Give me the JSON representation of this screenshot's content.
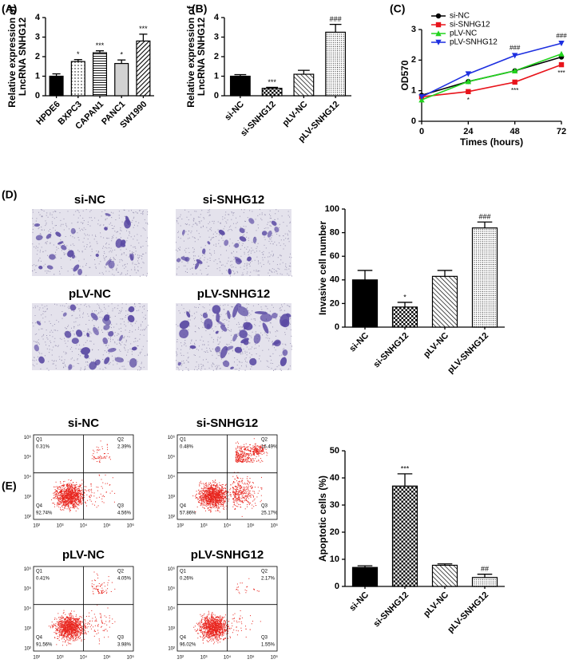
{
  "panel_labels": [
    "(A)",
    "(B)",
    "(C)",
    "(D)",
    "(E)"
  ],
  "chart_data": [
    {
      "type": "bar",
      "ylabel": [
        "Relative expression of",
        "LncRNA SNHG12"
      ],
      "categories": [
        "HPDE6",
        "BXPC3",
        "CAPAN1",
        "PANC1",
        "SW1990"
      ],
      "values": [
        1.0,
        1.75,
        2.2,
        1.65,
        2.8
      ],
      "errors": [
        0.12,
        0.1,
        0.1,
        0.18,
        0.35
      ],
      "annotations": [
        null,
        "*",
        "***",
        "*",
        "***"
      ],
      "patterns": [
        "solid",
        "dots",
        "hlines",
        "gray",
        "diag"
      ],
      "ylim": [
        0,
        4
      ],
      "yticks": [
        0,
        1,
        2,
        3,
        4
      ]
    },
    {
      "type": "bar",
      "ylabel": [
        "Relative expression of",
        "LncRNA SNHG12"
      ],
      "categories": [
        "si-NC",
        "si-SNHG12",
        "pLV-NC",
        "pLV-SNHG12"
      ],
      "values": [
        1.0,
        0.38,
        1.1,
        3.25
      ],
      "errors": [
        0.08,
        0.05,
        0.2,
        0.4
      ],
      "annotations": [
        null,
        "***",
        null,
        "###"
      ],
      "patterns": [
        "solid",
        "checker",
        "back",
        "dense"
      ],
      "ylim": [
        0,
        4
      ],
      "yticks": [
        0,
        1,
        2,
        3,
        4
      ]
    },
    {
      "type": "line",
      "ylabel": [
        "OD570"
      ],
      "xlabel": "Times (hours)",
      "x": [
        0,
        24,
        48,
        72
      ],
      "xlim": [
        0,
        72
      ],
      "xticks": [
        0,
        24,
        48,
        72
      ],
      "ylim": [
        0,
        3
      ],
      "yticks": [
        0,
        1,
        2,
        3
      ],
      "legend": "top-left",
      "series": [
        {
          "name": "si-NC",
          "color": "#000000",
          "marker": "circle",
          "values": [
            0.85,
            1.3,
            1.65,
            2.1
          ]
        },
        {
          "name": "si-SNHG12",
          "color": "#e8141b",
          "marker": "square",
          "values": [
            0.8,
            0.97,
            1.28,
            1.85
          ]
        },
        {
          "name": "pLV-NC",
          "color": "#22d31e",
          "marker": "triangle",
          "values": [
            0.7,
            1.3,
            1.65,
            2.2
          ]
        },
        {
          "name": "pLV-SNHG12",
          "color": "#1d2fe0",
          "marker": "down-triangle",
          "values": [
            0.8,
            1.55,
            2.15,
            2.55
          ]
        }
      ],
      "annotations": [
        {
          "text": "*",
          "series": 1,
          "index": 1
        },
        {
          "text": "###",
          "series": 3,
          "index": 2
        },
        {
          "text": "***",
          "series": 1,
          "index": 2
        },
        {
          "text": "###",
          "series": 3,
          "index": 3
        },
        {
          "text": "***",
          "series": 1,
          "index": 3
        }
      ]
    },
    {
      "type": "bar",
      "ylabel": [
        "Invasive cell number"
      ],
      "categories": [
        "si-NC",
        "si-SNHG12",
        "pLV-NC",
        "pLV-SNHG12"
      ],
      "values": [
        40,
        17,
        43,
        84
      ],
      "errors": [
        8,
        4,
        5,
        5
      ],
      "annotations": [
        null,
        "*",
        null,
        "###"
      ],
      "patterns": [
        "solid",
        "checker",
        "back",
        "dense"
      ],
      "ylim": [
        0,
        100
      ],
      "yticks": [
        0,
        20,
        40,
        60,
        80,
        100
      ]
    },
    {
      "type": "bar",
      "ylabel": [
        "Apoptotic cells (%)"
      ],
      "categories": [
        "si-NC",
        "si-SNHG12",
        "pLV-NC",
        "pLV-SNHG12"
      ],
      "values": [
        7,
        37,
        7.8,
        3.3
      ],
      "errors": [
        0.6,
        4.5,
        0.5,
        1.2
      ],
      "annotations": [
        null,
        "***",
        null,
        "##"
      ],
      "patterns": [
        "solid",
        "checker",
        "back",
        "dense"
      ],
      "ylim": [
        0,
        50
      ],
      "yticks": [
        0,
        10,
        20,
        30,
        40,
        50
      ]
    }
  ],
  "micrographs": {
    "titles": [
      "si-NC",
      "si-SNHG12",
      "pLV-NC",
      "pLV-SNHG12"
    ]
  },
  "flow": {
    "axis_ticks": [
      "10²",
      "10³",
      "10⁴",
      "10⁵",
      "10⁶"
    ],
    "plots": [
      {
        "title": "si-NC",
        "quadrants": [
          {
            "name": "Q1",
            "value": "0.31%"
          },
          {
            "name": "Q2",
            "value": "2.39%"
          },
          {
            "name": "Q3",
            "value": "4.56%"
          },
          {
            "name": "Q4",
            "value": "92.74%"
          }
        ]
      },
      {
        "title": "si-SNHG12",
        "quadrants": [
          {
            "name": "Q1",
            "value": "0.48%"
          },
          {
            "name": "Q2",
            "value": "16.49%"
          },
          {
            "name": "Q3",
            "value": "25.17%"
          },
          {
            "name": "Q4",
            "value": "57.86%"
          }
        ]
      },
      {
        "title": "pLV-NC",
        "quadrants": [
          {
            "name": "Q1",
            "value": "0.41%"
          },
          {
            "name": "Q2",
            "value": "4.05%"
          },
          {
            "name": "Q3",
            "value": "3.98%"
          },
          {
            "name": "Q4",
            "value": "91.56%"
          }
        ]
      },
      {
        "title": "pLV-SNHG12",
        "quadrants": [
          {
            "name": "Q1",
            "value": "0.26%"
          },
          {
            "name": "Q2",
            "value": "2.17%"
          },
          {
            "name": "Q3",
            "value": "1.55%"
          },
          {
            "name": "Q4",
            "value": "96.02%"
          }
        ]
      }
    ]
  }
}
